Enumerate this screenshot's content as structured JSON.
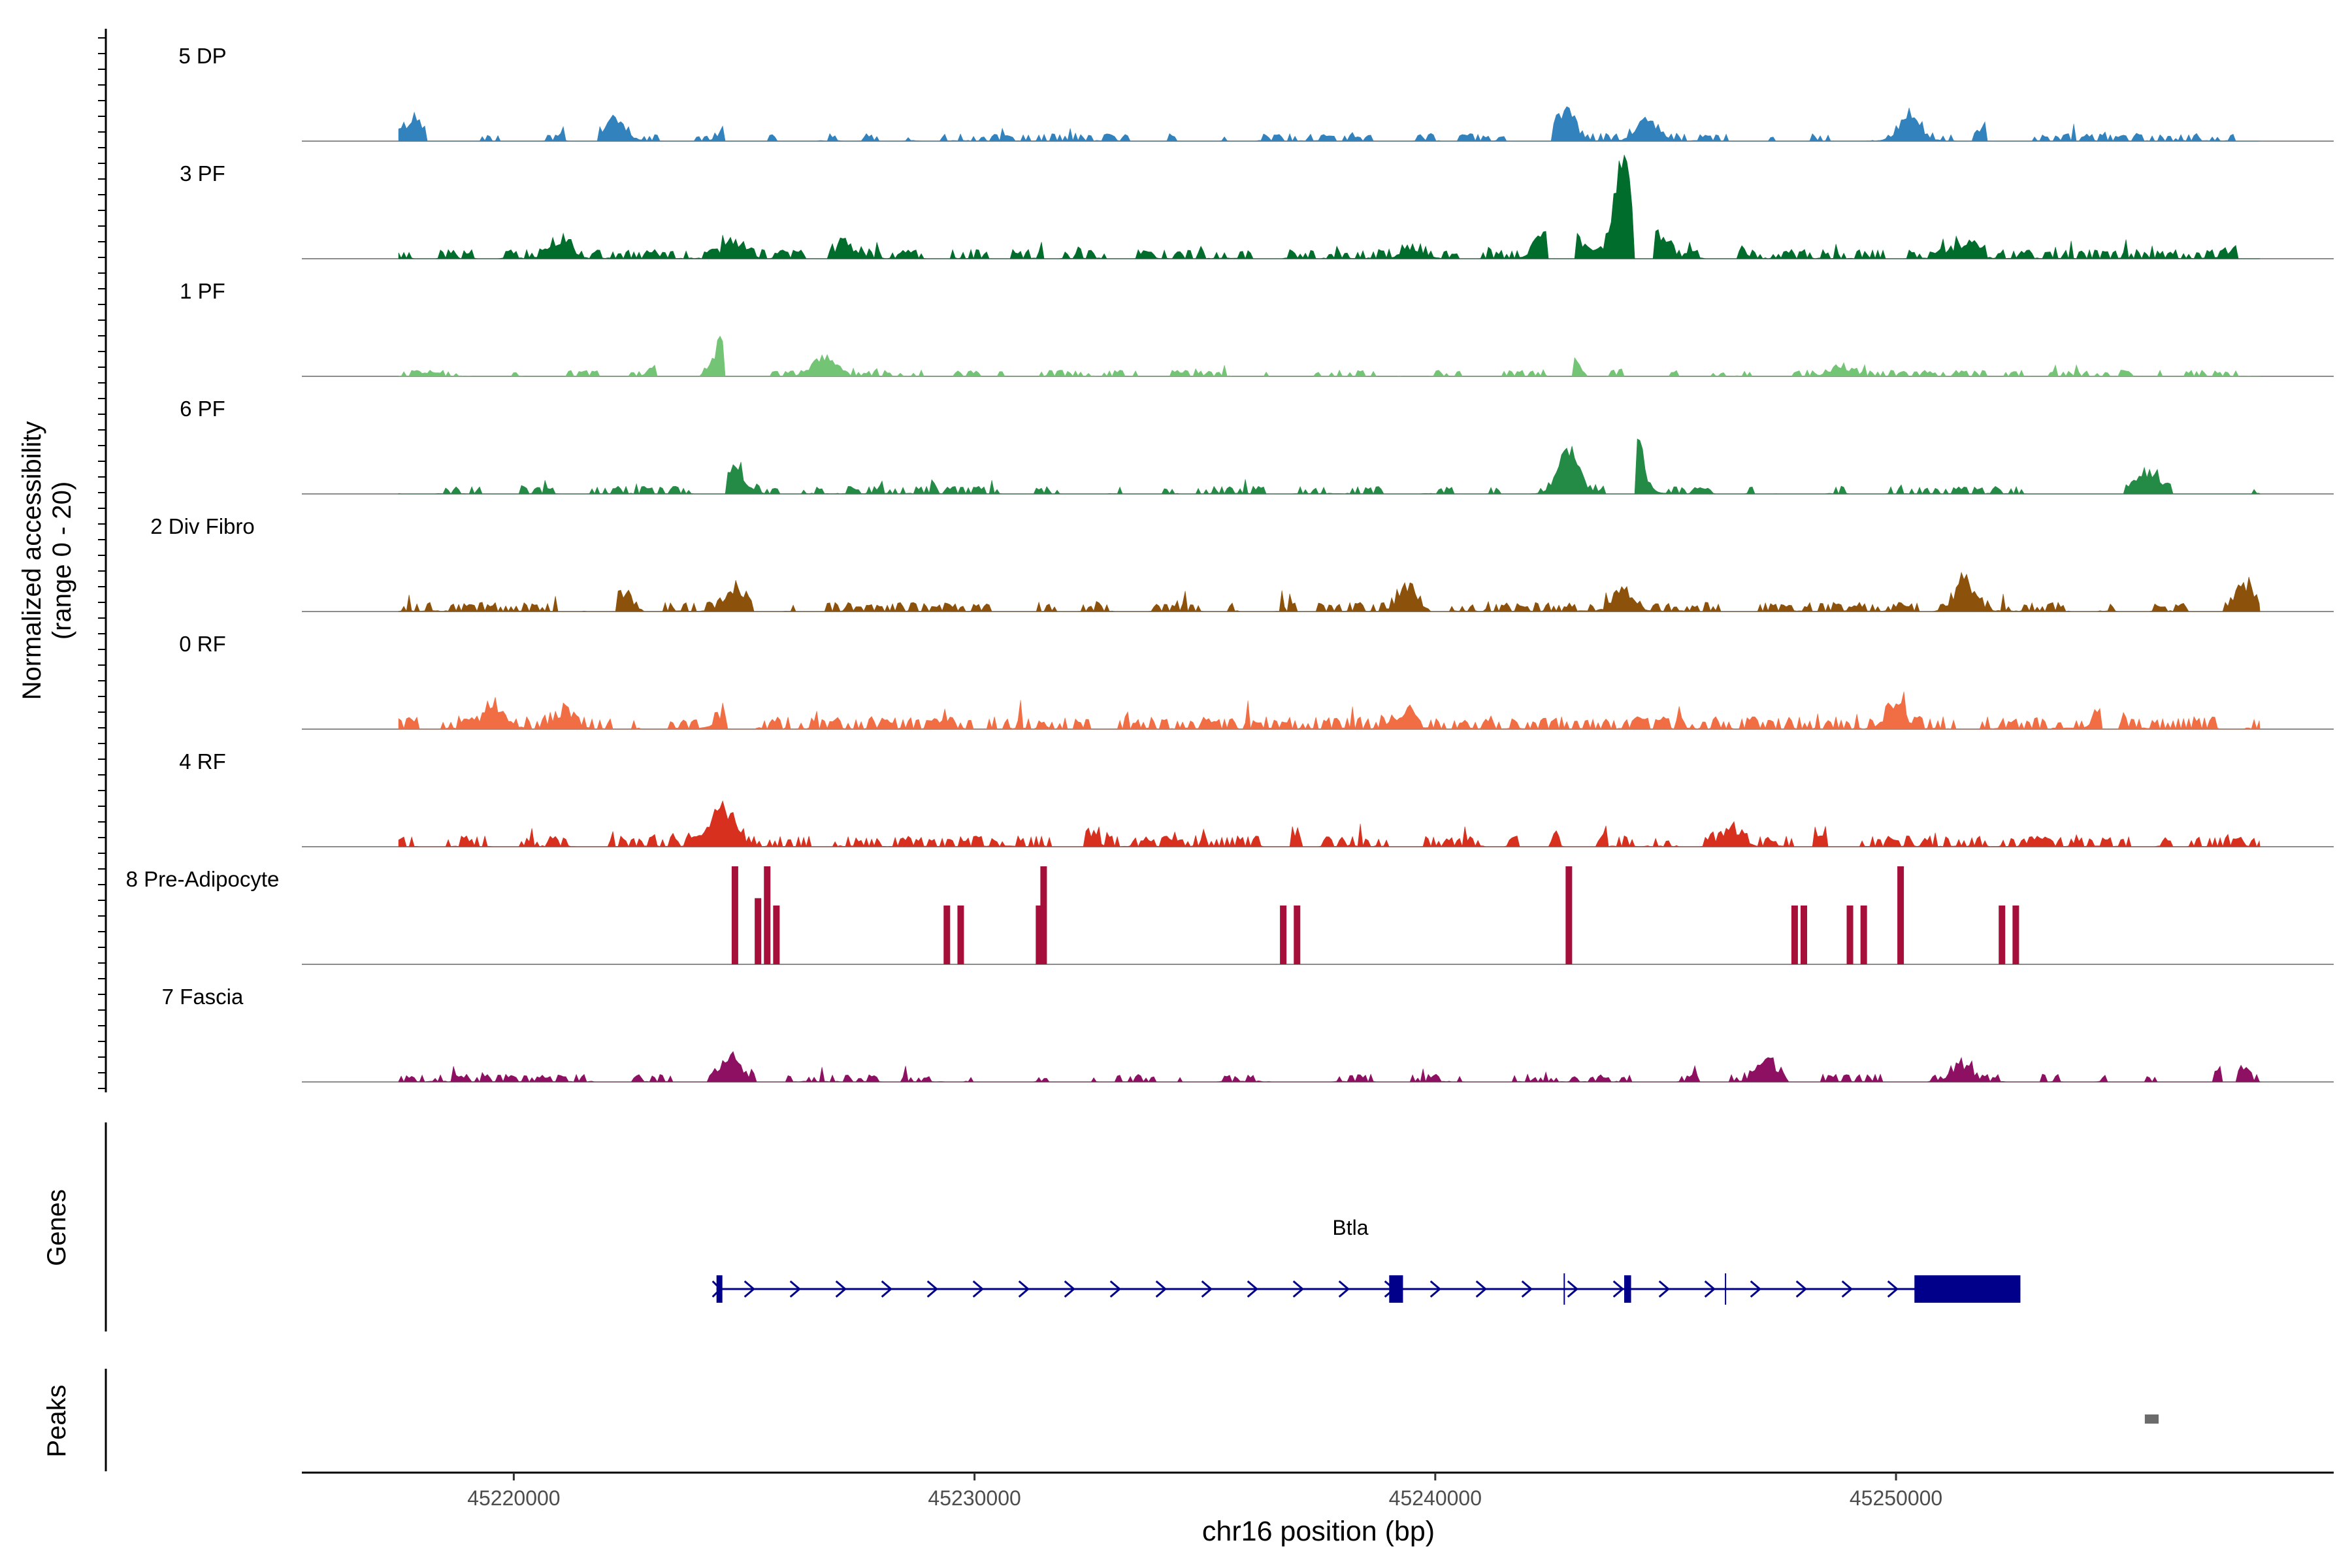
{
  "chart_data": {
    "type": "coverage-track",
    "ylabel_line1": "Normalized accessibility",
    "ylabel_line2": "(range 0 - 20)",
    "y_range": [
      0,
      20
    ],
    "xlabel": "chr16 position (bp)",
    "xlim": [
      45215400,
      45259500
    ],
    "x_ticks": [
      45220000,
      45230000,
      45240000,
      45250000
    ],
    "x_tick_labels": [
      "45220000",
      "45230000",
      "45240000",
      "45250000"
    ],
    "tracks": [
      {
        "name": "5 DP",
        "color": "#3182bd",
        "seed": 11,
        "sparsity": 0.55,
        "base": 0.1,
        "peaks": [
          [
            45217800,
            0.45
          ],
          [
            45222200,
            0.55
          ],
          [
            45224800,
            0.35
          ],
          [
            45242800,
            0.7
          ],
          [
            45244600,
            0.5
          ],
          [
            45250300,
            0.55
          ],
          [
            45252000,
            0.4
          ],
          [
            45257800,
            0.4
          ]
        ]
      },
      {
        "name": "3 PF",
        "color": "#006d2c",
        "seed": 23,
        "sparsity": 0.35,
        "base": 0.12,
        "peaks": [
          [
            45221000,
            0.4
          ],
          [
            45224800,
            0.35
          ],
          [
            45227200,
            0.3
          ],
          [
            45239500,
            0.25
          ],
          [
            45242400,
            0.5
          ],
          [
            45243000,
            0.45
          ],
          [
            45244100,
            2.2
          ],
          [
            45244800,
            0.6
          ],
          [
            45246400,
            0.3
          ],
          [
            45251500,
            0.3
          ],
          [
            45257500,
            0.3
          ]
        ]
      },
      {
        "name": "1 PF",
        "color": "#74c476",
        "seed": 37,
        "sparsity": 0.55,
        "base": 0.08,
        "peaks": [
          [
            45223300,
            0.3
          ],
          [
            45224600,
            0.8
          ],
          [
            45224900,
            0.7
          ],
          [
            45226700,
            0.45
          ],
          [
            45242900,
            0.35
          ],
          [
            45244400,
            0.25
          ],
          [
            45248800,
            0.2
          ]
        ]
      },
      {
        "name": "6 PF",
        "color": "#238b45",
        "seed": 41,
        "sparsity": 0.65,
        "base": 0.1,
        "peaks": [
          [
            45224800,
            0.55
          ],
          [
            45242900,
            1.0
          ],
          [
            45244100,
            1.3
          ],
          [
            45244300,
            0.8
          ],
          [
            45254700,
            0.55
          ],
          [
            45255500,
            0.5
          ]
        ]
      },
      {
        "name": "2 Div Fibro",
        "color": "#8c510a",
        "seed": 53,
        "sparsity": 0.4,
        "base": 0.12,
        "peaks": [
          [
            45222300,
            0.45
          ],
          [
            45224800,
            0.5
          ],
          [
            45239400,
            0.5
          ],
          [
            45244100,
            0.45
          ],
          [
            45251500,
            0.7
          ],
          [
            45257600,
            0.55
          ]
        ]
      },
      {
        "name": "0 RF",
        "color": "#f16d43",
        "seed": 67,
        "sparsity": 0.25,
        "base": 0.16,
        "peaks": [
          [
            45219600,
            0.5
          ],
          [
            45221100,
            0.35
          ],
          [
            45224700,
            0.45
          ],
          [
            45239300,
            0.35
          ],
          [
            45250000,
            0.45
          ],
          [
            45254600,
            0.45
          ]
        ]
      },
      {
        "name": "4 RF",
        "color": "#d7301f",
        "seed": 79,
        "sparsity": 0.35,
        "base": 0.14,
        "peaks": [
          [
            45224400,
            0.6
          ],
          [
            45224700,
            0.5
          ],
          [
            45232300,
            0.35
          ],
          [
            45237000,
            0.3
          ],
          [
            45246400,
            0.35
          ],
          [
            45248400,
            0.35
          ]
        ]
      },
      {
        "name": "8 Pre-Adipocyte",
        "color": "#a50f3a",
        "seed": 83,
        "sparsity": 1.0,
        "base": 0.0,
        "spikes": [
          [
            45224800,
            1.6
          ],
          [
            45225300,
            0.9
          ],
          [
            45225500,
            1.6
          ],
          [
            45225700,
            0.8
          ],
          [
            45229400,
            0.8
          ],
          [
            45229700,
            0.8
          ],
          [
            45231400,
            0.8
          ],
          [
            45231500,
            1.6
          ],
          [
            45236700,
            0.8
          ],
          [
            45237000,
            0.8
          ],
          [
            45242900,
            1.6
          ],
          [
            45247800,
            0.8
          ],
          [
            45248000,
            0.8
          ],
          [
            45249000,
            0.8
          ],
          [
            45249300,
            0.8
          ],
          [
            45250100,
            1.6
          ],
          [
            45252300,
            0.8
          ],
          [
            45252600,
            0.8
          ]
        ]
      },
      {
        "name": "7 Fascia",
        "color": "#8e1063",
        "seed": 97,
        "sparsity": 0.55,
        "base": 0.1,
        "peaks": [
          [
            45224700,
            0.55
          ],
          [
            45247200,
            0.5
          ],
          [
            45251400,
            0.35
          ],
          [
            45257300,
            0.4
          ]
        ]
      }
    ],
    "genes_label": "Genes",
    "gene": {
      "name": "Btla",
      "color": "#00008b",
      "start": 45224400,
      "end": 45252700,
      "strand": "+",
      "exons": [
        [
          45224400,
          45224500
        ],
        [
          45239000,
          45239300
        ],
        [
          45244100,
          45244250
        ],
        [
          45250400,
          45252700
        ]
      ],
      "minor_marks": [
        45242800,
        45246300
      ]
    },
    "peaks_label": "Peaks",
    "peak_regions": [
      [
        45255400,
        45255700
      ]
    ],
    "peak_color": "#6b6b6b"
  }
}
